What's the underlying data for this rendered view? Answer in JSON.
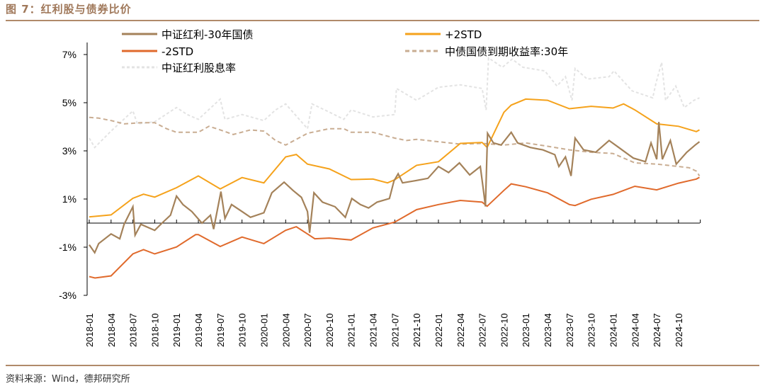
{
  "title": "图 7：红利股与债券比价",
  "source": "资料来源：Wind，德邦研究所",
  "chart_data": {
    "type": "line",
    "title": "图 7：红利股与债券比价",
    "ylim": [
      -3,
      8
    ],
    "yticks": [
      "7%",
      "5%",
      "3%",
      "1%",
      "-1%",
      "-3%"
    ],
    "ytick_values": [
      7,
      5,
      3,
      1,
      -1,
      -3
    ],
    "xticks": [
      "2018-01",
      "2018-04",
      "2018-07",
      "2018-10",
      "2019-01",
      "2019-04",
      "2019-07",
      "2019-10",
      "2020-01",
      "2020-04",
      "2020-07",
      "2020-10",
      "2021-01",
      "2021-04",
      "2021-07",
      "2021-10",
      "2022-01",
      "2022-04",
      "2022-07",
      "2022-10",
      "2023-01",
      "2023-04",
      "2023-07",
      "2023-10",
      "2024-01",
      "2024-04",
      "2024-07",
      "2024-10"
    ],
    "grid": false,
    "legend_placement": "top",
    "series": [
      {
        "name": "中证红利-30年国债",
        "color": "#a4825a",
        "dash": "none",
        "points": [
          [
            "2018-01-01",
            -0.9
          ],
          [
            "2018-01-24",
            -1.23
          ],
          [
            "2018-02-10",
            -0.85
          ],
          [
            "2018-04-01",
            -0.45
          ],
          [
            "2018-05-07",
            -0.65
          ],
          [
            "2018-05-25",
            -0.05
          ],
          [
            "2018-07-01",
            0.68
          ],
          [
            "2018-07-10",
            -0.5
          ],
          [
            "2018-08-04",
            -0.05
          ],
          [
            "2018-10-01",
            -0.3
          ],
          [
            "2018-11-01",
            0.0
          ],
          [
            "2018-12-06",
            0.33
          ],
          [
            "2019-01-01",
            1.12
          ],
          [
            "2019-01-28",
            0.77
          ],
          [
            "2019-03-04",
            0.48
          ],
          [
            "2019-04-16",
            0.0
          ],
          [
            "2019-05-21",
            0.33
          ],
          [
            "2019-06-04",
            -0.25
          ],
          [
            "2019-07-04",
            1.31
          ],
          [
            "2019-07-21",
            0.19
          ],
          [
            "2019-08-18",
            0.77
          ],
          [
            "2019-10-01",
            0.48
          ],
          [
            "2019-11-06",
            0.24
          ],
          [
            "2020-01-01",
            0.43
          ],
          [
            "2020-02-04",
            1.26
          ],
          [
            "2020-03-25",
            1.7
          ],
          [
            "2020-05-01",
            1.36
          ],
          [
            "2020-06-06",
            1.07
          ],
          [
            "2020-07-01",
            0.48
          ],
          [
            "2020-07-10",
            -0.4
          ],
          [
            "2020-07-28",
            1.26
          ],
          [
            "2020-09-03",
            0.87
          ],
          [
            "2020-10-25",
            0.68
          ],
          [
            "2020-12-07",
            0.24
          ],
          [
            "2021-01-04",
            1.02
          ],
          [
            "2021-02-09",
            0.77
          ],
          [
            "2021-03-13",
            0.63
          ],
          [
            "2021-04-18",
            0.87
          ],
          [
            "2021-06-09",
            1.02
          ],
          [
            "2021-06-28",
            1.75
          ],
          [
            "2021-07-15",
            2.05
          ],
          [
            "2021-08-03",
            1.67
          ],
          [
            "2021-09-25",
            1.76
          ],
          [
            "2021-11-18",
            1.86
          ],
          [
            "2022-01-01",
            2.35
          ],
          [
            "2022-02-13",
            2.1
          ],
          [
            "2022-03-28",
            2.5
          ],
          [
            "2022-05-10",
            2.0
          ],
          [
            "2022-06-24",
            2.35
          ],
          [
            "2022-07-08",
            1.27
          ],
          [
            "2022-07-15",
            0.69
          ],
          [
            "2022-07-24",
            3.73
          ],
          [
            "2022-08-18",
            3.33
          ],
          [
            "2022-09-20",
            3.24
          ],
          [
            "2022-11-01",
            3.77
          ],
          [
            "2022-11-28",
            3.33
          ],
          [
            "2023-01-20",
            3.14
          ],
          [
            "2023-03-12",
            3.04
          ],
          [
            "2023-05-01",
            2.84
          ],
          [
            "2023-05-18",
            2.35
          ],
          [
            "2023-06-15",
            2.75
          ],
          [
            "2023-07-08",
            1.96
          ],
          [
            "2023-07-25",
            3.53
          ],
          [
            "2023-08-30",
            3.04
          ],
          [
            "2023-10-20",
            2.94
          ],
          [
            "2023-12-15",
            3.43
          ],
          [
            "2024-01-25",
            3.14
          ],
          [
            "2024-03-25",
            2.7
          ],
          [
            "2024-05-15",
            2.55
          ],
          [
            "2024-06-08",
            3.33
          ],
          [
            "2024-07-01",
            2.65
          ],
          [
            "2024-07-10",
            4.2
          ],
          [
            "2024-07-25",
            2.65
          ],
          [
            "2024-08-28",
            3.43
          ],
          [
            "2024-09-22",
            2.45
          ],
          [
            "2024-11-05",
            2.94
          ],
          [
            "2024-12-10",
            3.24
          ],
          [
            "2024-12-28",
            3.38
          ]
        ]
      },
      {
        "name": "+2STD",
        "color": "#f5a21b",
        "dash": "none",
        "points": [
          [
            "2018-01-01",
            0.26
          ],
          [
            "2018-04-01",
            0.34
          ],
          [
            "2018-07-01",
            1.03
          ],
          [
            "2018-08-15",
            1.2
          ],
          [
            "2018-10-01",
            1.08
          ],
          [
            "2019-01-01",
            1.47
          ],
          [
            "2019-04-01",
            1.96
          ],
          [
            "2019-07-01",
            1.42
          ],
          [
            "2019-10-01",
            1.89
          ],
          [
            "2020-01-01",
            1.67
          ],
          [
            "2020-04-01",
            2.75
          ],
          [
            "2020-05-15",
            2.85
          ],
          [
            "2020-07-01",
            2.45
          ],
          [
            "2020-10-01",
            2.25
          ],
          [
            "2021-01-01",
            1.81
          ],
          [
            "2021-04-01",
            1.83
          ],
          [
            "2021-06-01",
            1.67
          ],
          [
            "2021-07-01",
            1.8
          ],
          [
            "2021-10-01",
            2.4
          ],
          [
            "2022-01-01",
            2.55
          ],
          [
            "2022-04-01",
            3.31
          ],
          [
            "2022-07-01",
            3.35
          ],
          [
            "2022-07-22",
            3.14
          ],
          [
            "2022-10-01",
            4.6
          ],
          [
            "2022-11-01",
            4.9
          ],
          [
            "2023-01-01",
            5.15
          ],
          [
            "2023-04-01",
            5.1
          ],
          [
            "2023-07-01",
            4.75
          ],
          [
            "2023-10-01",
            4.85
          ],
          [
            "2024-01-01",
            4.78
          ],
          [
            "2024-02-15",
            4.95
          ],
          [
            "2024-04-01",
            4.7
          ],
          [
            "2024-07-01",
            4.12
          ],
          [
            "2024-10-01",
            4.02
          ],
          [
            "2024-12-15",
            3.8
          ],
          [
            "2024-12-28",
            3.87
          ]
        ]
      },
      {
        "name": "-2STD",
        "color": "#e06a2c",
        "dash": "none",
        "points": [
          [
            "2018-01-01",
            -2.22
          ],
          [
            "2018-01-25",
            -2.28
          ],
          [
            "2018-04-01",
            -2.19
          ],
          [
            "2018-07-01",
            -1.28
          ],
          [
            "2018-08-15",
            -1.1
          ],
          [
            "2018-10-01",
            -1.28
          ],
          [
            "2019-01-01",
            -0.99
          ],
          [
            "2019-03-20",
            -0.48
          ],
          [
            "2019-04-01",
            -0.48
          ],
          [
            "2019-07-01",
            -0.97
          ],
          [
            "2019-10-01",
            -0.58
          ],
          [
            "2020-01-01",
            -0.85
          ],
          [
            "2020-04-01",
            -0.3
          ],
          [
            "2020-05-15",
            -0.15
          ],
          [
            "2020-07-01",
            -0.45
          ],
          [
            "2020-08-01",
            -0.65
          ],
          [
            "2020-10-01",
            -0.62
          ],
          [
            "2021-01-01",
            -0.7
          ],
          [
            "2021-04-01",
            -0.2
          ],
          [
            "2021-07-01",
            0.04
          ],
          [
            "2021-10-01",
            0.56
          ],
          [
            "2022-01-01",
            0.77
          ],
          [
            "2022-04-01",
            0.94
          ],
          [
            "2022-07-01",
            0.87
          ],
          [
            "2022-07-22",
            0.7
          ],
          [
            "2022-10-01",
            1.36
          ],
          [
            "2022-11-01",
            1.63
          ],
          [
            "2023-01-01",
            1.51
          ],
          [
            "2023-04-01",
            1.26
          ],
          [
            "2023-07-01",
            0.77
          ],
          [
            "2023-07-25",
            0.73
          ],
          [
            "2023-10-01",
            0.99
          ],
          [
            "2024-01-01",
            1.19
          ],
          [
            "2024-04-01",
            1.53
          ],
          [
            "2024-07-01",
            1.38
          ],
          [
            "2024-10-01",
            1.66
          ],
          [
            "2024-12-15",
            1.83
          ],
          [
            "2024-12-28",
            1.9
          ]
        ]
      },
      {
        "name": "中债国债到期收益率:30年",
        "color": "#c9ad92",
        "dash": "6,4",
        "points": [
          [
            "2018-01-01",
            4.39
          ],
          [
            "2018-02-10",
            4.36
          ],
          [
            "2018-04-01",
            4.26
          ],
          [
            "2018-05-25",
            4.12
          ],
          [
            "2018-08-04",
            4.17
          ],
          [
            "2018-10-01",
            4.17
          ],
          [
            "2018-11-20",
            3.92
          ],
          [
            "2019-01-01",
            3.77
          ],
          [
            "2019-04-01",
            3.77
          ],
          [
            "2019-05-15",
            4.02
          ],
          [
            "2019-07-01",
            3.87
          ],
          [
            "2019-08-25",
            3.68
          ],
          [
            "2019-11-06",
            3.87
          ],
          [
            "2020-01-01",
            3.82
          ],
          [
            "2020-02-20",
            3.43
          ],
          [
            "2020-04-01",
            3.24
          ],
          [
            "2020-07-01",
            3.73
          ],
          [
            "2020-10-01",
            3.92
          ],
          [
            "2020-12-01",
            3.92
          ],
          [
            "2021-01-01",
            3.77
          ],
          [
            "2021-04-01",
            3.77
          ],
          [
            "2021-07-01",
            3.53
          ],
          [
            "2021-08-20",
            3.43
          ],
          [
            "2021-10-01",
            3.48
          ],
          [
            "2022-01-01",
            3.38
          ],
          [
            "2022-04-01",
            3.28
          ],
          [
            "2022-07-01",
            3.31
          ],
          [
            "2022-10-01",
            3.24
          ],
          [
            "2023-01-01",
            3.33
          ],
          [
            "2023-04-01",
            3.19
          ],
          [
            "2023-07-01",
            3.04
          ],
          [
            "2023-10-01",
            2.94
          ],
          [
            "2024-01-01",
            2.89
          ],
          [
            "2024-04-01",
            2.5
          ],
          [
            "2024-07-01",
            2.45
          ],
          [
            "2024-10-01",
            2.35
          ],
          [
            "2024-11-15",
            2.3
          ],
          [
            "2024-12-15",
            2.16
          ],
          [
            "2024-12-28",
            1.96
          ]
        ]
      },
      {
        "name": "中证红利股息率",
        "color": "#e3e3e3",
        "dash": "4,3",
        "points": [
          [
            "2018-01-01",
            3.53
          ],
          [
            "2018-01-24",
            3.14
          ],
          [
            "2018-04-01",
            3.82
          ],
          [
            "2018-07-01",
            4.66
          ],
          [
            "2018-07-20",
            4.12
          ],
          [
            "2018-10-01",
            4.21
          ],
          [
            "2019-01-01",
            4.8
          ],
          [
            "2019-02-15",
            4.51
          ],
          [
            "2019-04-01",
            4.31
          ],
          [
            "2019-07-01",
            5.15
          ],
          [
            "2019-07-21",
            4.31
          ],
          [
            "2019-10-01",
            4.51
          ],
          [
            "2020-01-01",
            4.26
          ],
          [
            "2020-02-20",
            4.7
          ],
          [
            "2020-04-01",
            4.95
          ],
          [
            "2020-07-01",
            3.92
          ],
          [
            "2020-07-20",
            4.95
          ],
          [
            "2020-10-01",
            4.61
          ],
          [
            "2020-12-01",
            4.31
          ],
          [
            "2021-01-01",
            4.7
          ],
          [
            "2021-04-01",
            4.41
          ],
          [
            "2021-07-01",
            4.51
          ],
          [
            "2021-07-08",
            5.59
          ],
          [
            "2021-10-01",
            5.1
          ],
          [
            "2022-01-01",
            5.64
          ],
          [
            "2022-04-01",
            5.74
          ],
          [
            "2022-07-01",
            5.59
          ],
          [
            "2022-07-18",
            4.7
          ],
          [
            "2022-07-28",
            6.86
          ],
          [
            "2022-09-25",
            6.47
          ],
          [
            "2022-11-05",
            6.81
          ],
          [
            "2022-12-20",
            6.47
          ],
          [
            "2023-03-20",
            6.32
          ],
          [
            "2023-05-10",
            5.69
          ],
          [
            "2023-06-15",
            6.08
          ],
          [
            "2023-07-12",
            5.1
          ],
          [
            "2023-07-25",
            6.42
          ],
          [
            "2023-09-15",
            5.98
          ],
          [
            "2023-12-15",
            6.08
          ],
          [
            "2024-01-05",
            6.32
          ],
          [
            "2024-03-20",
            5.49
          ],
          [
            "2024-06-15",
            5.2
          ],
          [
            "2024-06-28",
            5.79
          ],
          [
            "2024-07-22",
            6.67
          ],
          [
            "2024-08-08",
            5.1
          ],
          [
            "2024-09-20",
            5.69
          ],
          [
            "2024-10-25",
            4.8
          ],
          [
            "2024-12-05",
            5.1
          ],
          [
            "2024-12-28",
            5.2
          ]
        ]
      }
    ]
  }
}
